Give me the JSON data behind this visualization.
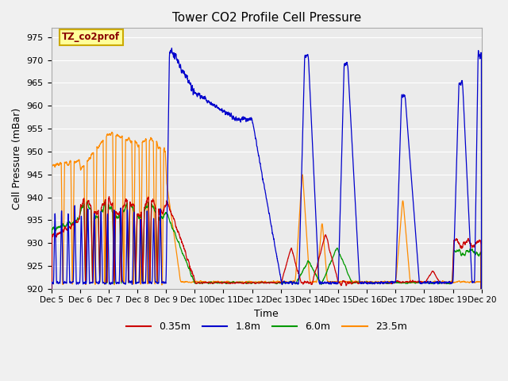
{
  "title": "Tower CO2 Profile Cell Pressure",
  "xlabel": "Time",
  "ylabel": "Cell Pressure (mBar)",
  "ylim": [
    920,
    977
  ],
  "bg_color": "#ebebeb",
  "grid_color": "#ffffff",
  "series": {
    "red": {
      "label": "0.35m",
      "color": "#cc0000"
    },
    "blue": {
      "label": "1.8m",
      "color": "#0000cc"
    },
    "green": {
      "label": "6.0m",
      "color": "#009900"
    },
    "orange": {
      "label": "23.5m",
      "color": "#ff8c00"
    }
  },
  "xtick_labels": [
    "Dec 5",
    "Dec 6",
    "Dec 7",
    "Dec 8",
    "Dec 9",
    "Dec 10",
    "Dec 11",
    "Dec 12",
    "Dec 13",
    "Dec 14",
    "Dec 15",
    "Dec 16",
    "Dec 17",
    "Dec 18",
    "Dec 19",
    "Dec 20"
  ],
  "ytick_vals": [
    920,
    925,
    930,
    935,
    940,
    945,
    950,
    955,
    960,
    965,
    970,
    975
  ],
  "annotation_text": "TZ_co2prof",
  "annotation_bg": "#ffff99",
  "annotation_border": "#ccaa00"
}
